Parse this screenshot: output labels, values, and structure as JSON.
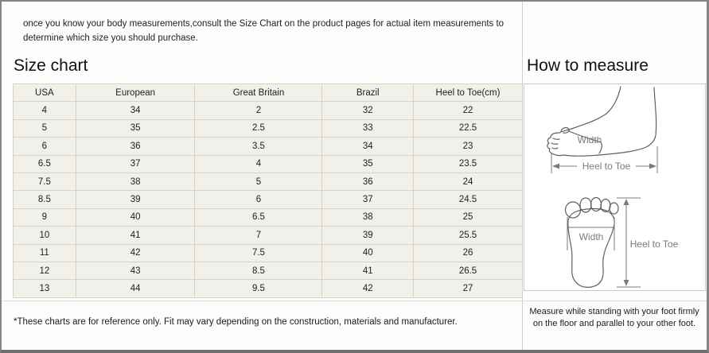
{
  "intro": {
    "line1": "once you know your body measurements,consult the Size Chart on the product pages for actual item measurements to",
    "line2": "determine which size you should purchase."
  },
  "size_chart": {
    "heading": "Size chart",
    "columns": [
      "USA",
      "European",
      "Great Britain",
      "Brazil",
      "Heel to Toe(cm)"
    ],
    "rows": [
      [
        "4",
        "34",
        "2",
        "32",
        "22"
      ],
      [
        "5",
        "35",
        "2.5",
        "33",
        "22.5"
      ],
      [
        "6",
        "36",
        "3.5",
        "34",
        "23"
      ],
      [
        "6.5",
        "37",
        "4",
        "35",
        "23.5"
      ],
      [
        "7.5",
        "38",
        "5",
        "36",
        "24"
      ],
      [
        "8.5",
        "39",
        "6",
        "37",
        "24.5"
      ],
      [
        "9",
        "40",
        "6.5",
        "38",
        "25"
      ],
      [
        "10",
        "41",
        "7",
        "39",
        "25.5"
      ],
      [
        "11",
        "42",
        "7.5",
        "40",
        "26"
      ],
      [
        "12",
        "43",
        "8.5",
        "41",
        "26.5"
      ],
      [
        "13",
        "44",
        "9.5",
        "42",
        "27"
      ]
    ],
    "footnote": "*These charts are for reference only. Fit may vary depending on the construction, materials and manufacturer."
  },
  "how_to_measure": {
    "heading": "How to measure",
    "side_view": {
      "width_label": "Width",
      "heel_to_toe_label": "Heel to Toe"
    },
    "top_view": {
      "width_label": "Width",
      "heel_to_toe_label": "Heel to Toe"
    },
    "note_line1": "Measure while standing with your foot firmly",
    "note_line2": "on the floor and parallel to your other foot."
  },
  "colors": {
    "page_bg": "#fdfdfd",
    "frame_border": "#848484",
    "frame_border_dark": "#6e6e6e",
    "cell_bg": "#f1f0eb",
    "table_border": "#d8d4be",
    "divider": "#d0d0d0",
    "diagram_stroke": "#606060",
    "label_gray": "#7a7a7a"
  }
}
